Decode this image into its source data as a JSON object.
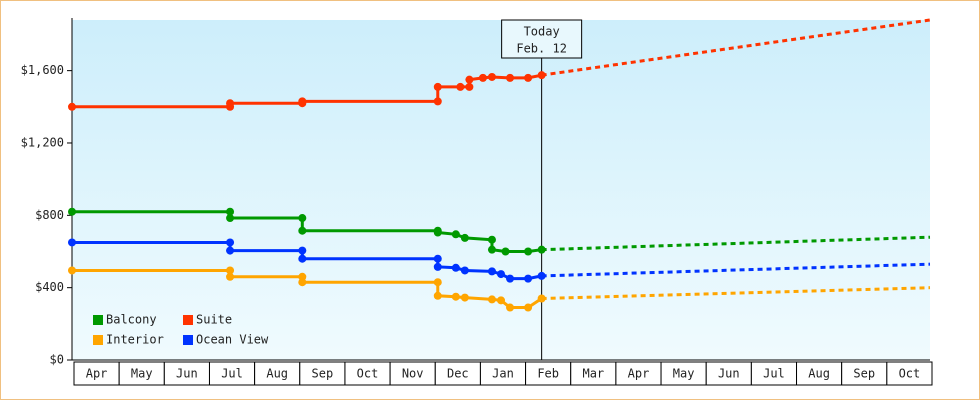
{
  "chart_data": {
    "type": "line",
    "categories": [
      "Apr",
      "May",
      "Jun",
      "Jul",
      "Aug",
      "Sep",
      "Oct",
      "Nov",
      "Dec",
      "Jan",
      "Feb",
      "Mar",
      "Apr",
      "May",
      "Jun",
      "Jul",
      "Aug",
      "Sep",
      "Oct"
    ],
    "xlim": [
      0,
      19
    ],
    "ylim": [
      0,
      1880
    ],
    "yticks": [
      {
        "value": 0,
        "label": "$0"
      },
      {
        "value": 400,
        "label": "$400"
      },
      {
        "value": 800,
        "label": "$800"
      },
      {
        "value": 1200,
        "label": "$1,200"
      },
      {
        "value": 1600,
        "label": "$1,600"
      }
    ],
    "today": {
      "label": "Today",
      "date": "Feb. 12",
      "x": 10.4
    },
    "series": [
      {
        "name": "Balcony",
        "color": "#009900",
        "x": [
          0,
          3.5,
          3.5,
          5.1,
          5.1,
          8.1,
          8.1,
          8.5,
          8.7,
          9.3,
          9.3,
          9.6,
          10.1,
          10.4
        ],
        "values": [
          820,
          820,
          785,
          785,
          715,
          715,
          705,
          695,
          675,
          665,
          610,
          600,
          600,
          610
        ],
        "forecast_x": [
          10.4,
          19
        ],
        "forecast_values": [
          610,
          679
        ]
      },
      {
        "name": "Suite",
        "color": "#ff3300",
        "x": [
          0,
          3.5,
          3.5,
          5.1,
          5.1,
          8.1,
          8.1,
          8.6,
          8.8,
          8.8,
          9.1,
          9.3,
          9.7,
          10.1,
          10.4
        ],
        "values": [
          1400,
          1400,
          1420,
          1420,
          1430,
          1430,
          1510,
          1510,
          1510,
          1550,
          1560,
          1565,
          1560,
          1560,
          1575
        ],
        "forecast_x": [
          10.4,
          19
        ],
        "forecast_values": [
          1575,
          1880
        ]
      },
      {
        "name": "Interior",
        "color": "#ffa500",
        "x": [
          0,
          3.5,
          3.5,
          5.1,
          5.1,
          8.1,
          8.1,
          8.5,
          8.7,
          9.3,
          9.5,
          9.7,
          10.1,
          10.4
        ],
        "values": [
          495,
          495,
          460,
          460,
          430,
          430,
          355,
          350,
          345,
          335,
          330,
          290,
          290,
          340
        ],
        "forecast_x": [
          10.4,
          19
        ],
        "forecast_values": [
          340,
          400
        ]
      },
      {
        "name": "Ocean View",
        "color": "#0033ff",
        "x": [
          0,
          3.5,
          3.5,
          5.1,
          5.1,
          8.1,
          8.1,
          8.5,
          8.7,
          9.3,
          9.5,
          9.7,
          10.1,
          10.4
        ],
        "values": [
          650,
          650,
          605,
          605,
          560,
          560,
          515,
          510,
          495,
          490,
          475,
          450,
          450,
          465
        ],
        "forecast_x": [
          10.4,
          19
        ],
        "forecast_values": [
          465,
          530
        ]
      }
    ]
  }
}
